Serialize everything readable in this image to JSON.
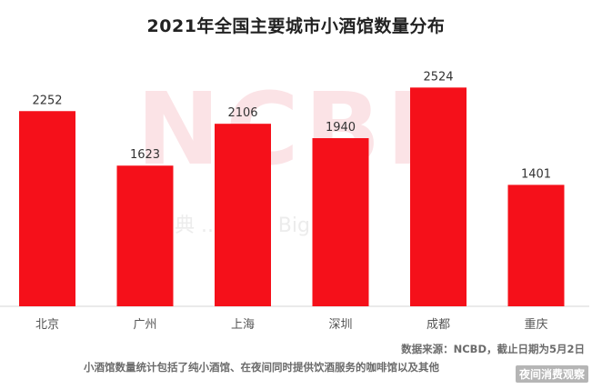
{
  "chart_data": {
    "type": "bar",
    "title": "2021年全国主要城市小酒馆数量分布",
    "categories": [
      "北京",
      "广州",
      "上海",
      "深圳",
      "成都",
      "重庆"
    ],
    "values": [
      2252,
      1623,
      2106,
      1940,
      2524,
      1401
    ],
    "data_labels": [
      "2252",
      "1623",
      "2106",
      "1940",
      "2524",
      "1401"
    ],
    "ylim": [
      0,
      2800
    ],
    "xlabel": "",
    "ylabel": "",
    "grid": false,
    "bar_color": "#f5101a"
  },
  "watermark": {
    "text": "NCBD",
    "subtext": "宝典 ... Ca... Big D..."
  },
  "footnotes": {
    "source": "数据来源：NCBD，截止日期为5月2日",
    "definition": "小酒馆数量统计包括了纯小酒馆、在夜间同时提供饮酒服务的咖啡馆以及其他"
  },
  "credit": "夜间消费观察"
}
